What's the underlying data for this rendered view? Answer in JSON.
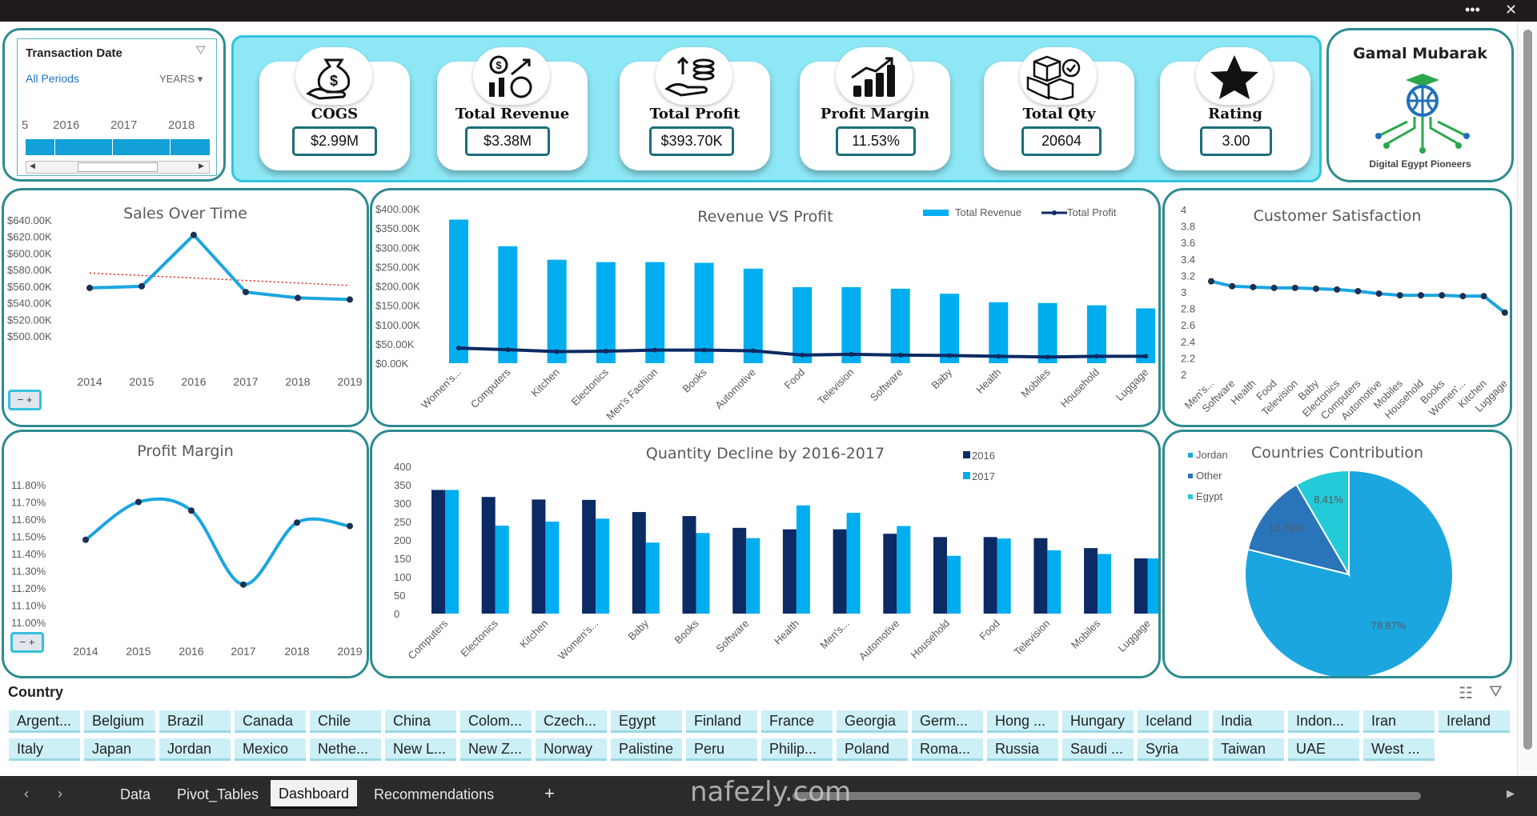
{
  "tabs": [
    "Data",
    "Pivot_Tables",
    "Dashboard",
    "Recommendations"
  ],
  "add_tab": "+",
  "window": {
    "more": "•••",
    "close": "✕"
  },
  "slicer": {
    "title": "Transaction Date",
    "selection": "All Periods",
    "level": "YEARS",
    "years": [
      "5",
      "2016",
      "2017",
      "2018"
    ]
  },
  "kpis": [
    {
      "label": "COGS",
      "value": "$2.99M",
      "icon": "money-bag-icon"
    },
    {
      "label": "Total Revenue",
      "value": "$3.38M",
      "icon": "revenue-coins-icon"
    },
    {
      "label": "Total Profit",
      "value": "$393.70K",
      "icon": "hand-coins-icon"
    },
    {
      "label": "Profit Margin",
      "value": "11.53%",
      "icon": "bar-growth-icon"
    },
    {
      "label": "Total Qty",
      "value": "20604",
      "icon": "boxes-icon"
    },
    {
      "label": "Rating",
      "value": "3.00",
      "icon": "star-icon"
    }
  ],
  "profile": {
    "name": "Gamal Mubarak",
    "org": "Digital Egypt Pioneers"
  },
  "country": {
    "label": "Country",
    "items": [
      "Argent...",
      "Belgium",
      "Brazil",
      "Canada",
      "Chile",
      "China",
      "Colom...",
      "Czech...",
      "Egypt",
      "Finland",
      "France",
      "Georgia",
      "Germ...",
      "Hong ...",
      "Hungary",
      "Iceland",
      "India",
      "Indon...",
      "Iran",
      "Ireland",
      "Italy",
      "Japan",
      "Jordan",
      "Mexico",
      "Nethe...",
      "New L...",
      "New Z...",
      "Norway",
      "Palistine",
      "Peru",
      "Philip...",
      "Poland",
      "Roma...",
      "Russia",
      "Saudi ...",
      "Syria",
      "Taiwan",
      "UAE",
      "West ..."
    ]
  },
  "watermark": "nafezly.com",
  "zoom_minus": "−",
  "zoom_plus": "+",
  "chart_data": [
    {
      "id": "sales_over_time",
      "type": "line",
      "title": "Sales Over Time",
      "x": [
        "2014",
        "2015",
        "2016",
        "2017",
        "2018",
        "2019"
      ],
      "values": [
        558,
        560,
        622,
        553,
        546,
        544
      ],
      "trendline": [
        576,
        561
      ],
      "ylim": [
        500,
        640
      ],
      "yticks": [
        "$500.00K",
        "$520.00K",
        "$540.00K",
        "$560.00K",
        "$580.00K",
        "$600.00K",
        "$620.00K",
        "$640.00K"
      ],
      "colors": {
        "line": "#1ba6e0",
        "trend": "#d62424"
      }
    },
    {
      "id": "revenue_vs_profit",
      "type": "bar",
      "title": "Revenue VS  Profit",
      "categories": [
        "Women's...",
        "Computers",
        "Kitchen",
        "Electonics",
        "Men's Fashion",
        "Books",
        "Automotive",
        "Food",
        "Television",
        "Software",
        "Baby",
        "Health",
        "Mobiles",
        "Household",
        "Luggage"
      ],
      "series": [
        {
          "name": "Total Revenue",
          "type": "bar",
          "color": "#00aeef",
          "values": [
            372,
            303,
            268,
            262,
            262,
            260,
            245,
            197,
            197,
            193,
            180,
            158,
            156,
            150,
            142
          ]
        },
        {
          "name": "Total Profit",
          "type": "line",
          "color": "#0c2a63",
          "values": [
            39,
            35,
            30,
            31,
            34,
            34,
            32,
            21,
            23,
            21,
            20,
            18,
            16,
            18,
            18
          ]
        }
      ],
      "ylim": [
        0,
        400
      ],
      "yticks": [
        "$0.00K",
        "$50.00K",
        "$100.00K",
        "$150.00K",
        "$200.00K",
        "$250.00K",
        "$300.00K",
        "$350.00K",
        "$400.00K"
      ]
    },
    {
      "id": "customer_satisfaction",
      "type": "line",
      "title": "Customer Satisfaction",
      "categories": [
        "Men's...",
        "Software",
        "Health",
        "Food",
        "Television",
        "Baby",
        "Electonics",
        "Computers",
        "Automotive",
        "Mobiles",
        "Household",
        "Books",
        "Women'...",
        "Kitchen",
        "Luggage"
      ],
      "values": [
        3.13,
        3.07,
        3.06,
        3.05,
        3.05,
        3.04,
        3.03,
        3.01,
        2.98,
        2.96,
        2.96,
        2.96,
        2.95,
        2.95,
        2.75
      ],
      "ylim": [
        2,
        4
      ],
      "yticks": [
        "2",
        "2.2",
        "2.4",
        "2.6",
        "2.8",
        "3",
        "3.2",
        "3.4",
        "3.6",
        "3.8",
        "4"
      ],
      "colors": {
        "line": "#1ba6e0"
      }
    },
    {
      "id": "profit_margin",
      "type": "line",
      "title": "Profit Margin",
      "x": [
        "2014",
        "2015",
        "2016",
        "2017",
        "2018",
        "2019"
      ],
      "values": [
        11.48,
        11.7,
        11.65,
        11.22,
        11.58,
        11.56
      ],
      "ylim": [
        11.0,
        11.8
      ],
      "yticks": [
        "11.00%",
        "11.10%",
        "11.20%",
        "11.30%",
        "11.40%",
        "11.50%",
        "11.60%",
        "11.70%",
        "11.80%"
      ],
      "colors": {
        "line": "#1ba6e0"
      }
    },
    {
      "id": "quantity_decline",
      "type": "bar",
      "title": "Quantity Decline by 2016-2017",
      "categories": [
        "Computers",
        "Electonics",
        "Kitchen",
        "Women's...",
        "Baby",
        "Books",
        "Software",
        "Health",
        "Men's...",
        "Automotive",
        "Household",
        "Food",
        "Television",
        "Mobiles",
        "Luggage"
      ],
      "series": [
        {
          "name": "2016",
          "color": "#0c2a63",
          "values": [
            336,
            317,
            310,
            309,
            276,
            265,
            233,
            229,
            229,
            217,
            208,
            208,
            205,
            178,
            150
          ]
        },
        {
          "name": "2017",
          "color": "#00aeef",
          "values": [
            336,
            239,
            250,
            258,
            193,
            219,
            205,
            294,
            274,
            238,
            157,
            204,
            172,
            162,
            150
          ]
        }
      ],
      "ylim": [
        0,
        400
      ],
      "yticks": [
        "0",
        "50",
        "100",
        "150",
        "200",
        "250",
        "300",
        "350",
        "400"
      ]
    },
    {
      "id": "countries_contribution",
      "type": "pie",
      "title": "Countries Contribution",
      "labels": [
        "Jordan",
        "Other",
        "Egypt"
      ],
      "values": [
        78.87,
        12.72,
        8.41
      ],
      "value_labels": [
        "78.87%",
        "12.72%",
        "8.41%"
      ],
      "colors": [
        "#1ba6e0",
        "#2a74b9",
        "#23cbd8"
      ]
    }
  ]
}
